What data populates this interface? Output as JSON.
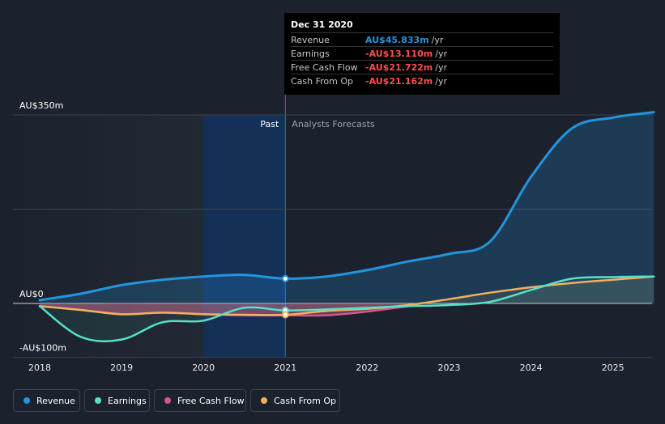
{
  "tooltip": {
    "date": "Dec 31 2020",
    "rows": [
      {
        "label": "Revenue",
        "value": "AU$45.833m",
        "unit": "/yr",
        "color": "#2394df"
      },
      {
        "label": "Earnings",
        "value": "-AU$13.110m",
        "unit": "/yr",
        "color": "#ff4d4d"
      },
      {
        "label": "Free Cash Flow",
        "value": "-AU$21.722m",
        "unit": "/yr",
        "color": "#ff4d4d"
      },
      {
        "label": "Cash From Op",
        "value": "-AU$21.162m",
        "unit": "/yr",
        "color": "#ff4d4d"
      }
    ]
  },
  "chart_data": {
    "type": "line",
    "x_unit": "year",
    "y_unit": "AU$m",
    "ylim": [
      -100,
      350
    ],
    "y_axis_labels": [
      {
        "value": 350,
        "text": "AU$350m"
      },
      {
        "value": 0,
        "text": "AU$0"
      },
      {
        "value": -100,
        "text": "-AU$100m"
      }
    ],
    "x_ticks": [
      {
        "value": 2018,
        "label": "2018"
      },
      {
        "value": 2019,
        "label": "2019"
      },
      {
        "value": 2020,
        "label": "2020"
      },
      {
        "value": 2021,
        "label": "2021"
      },
      {
        "value": 2022,
        "label": "2022"
      },
      {
        "value": 2023,
        "label": "2023"
      },
      {
        "value": 2024,
        "label": "2024"
      },
      {
        "value": 2025,
        "label": "2025"
      }
    ],
    "xlim": [
      2017.7,
      2025.5
    ],
    "divider_x": 2021.0,
    "past_label": "Past",
    "forecast_label": "Analysts Forecasts",
    "series": [
      {
        "name": "Revenue",
        "color": "#2394df",
        "points": [
          [
            2018.0,
            6
          ],
          [
            2018.5,
            18
          ],
          [
            2019.0,
            34
          ],
          [
            2019.5,
            44
          ],
          [
            2020.0,
            50
          ],
          [
            2020.5,
            53
          ],
          [
            2021.0,
            46
          ],
          [
            2021.5,
            50
          ],
          [
            2022.0,
            62
          ],
          [
            2022.5,
            78
          ],
          [
            2023.0,
            92
          ],
          [
            2023.5,
            115
          ],
          [
            2024.0,
            235
          ],
          [
            2024.5,
            325
          ],
          [
            2025.0,
            345
          ],
          [
            2025.5,
            355
          ]
        ]
      },
      {
        "name": "Earnings",
        "color": "#57e0c8",
        "points": [
          [
            2018.0,
            -5
          ],
          [
            2018.5,
            -62
          ],
          [
            2019.0,
            -67
          ],
          [
            2019.5,
            -35
          ],
          [
            2020.0,
            -32
          ],
          [
            2020.5,
            -8
          ],
          [
            2021.0,
            -13
          ],
          [
            2021.5,
            -11
          ],
          [
            2022.0,
            -8
          ],
          [
            2022.5,
            -5
          ],
          [
            2023.0,
            -3
          ],
          [
            2023.5,
            3
          ],
          [
            2024.0,
            25
          ],
          [
            2024.5,
            46
          ],
          [
            2025.0,
            49
          ],
          [
            2025.5,
            50
          ]
        ]
      },
      {
        "name": "Free Cash Flow",
        "color": "#d0578f",
        "points": [
          [
            2018.0,
            -5
          ],
          [
            2018.5,
            -12
          ],
          [
            2019.0,
            -20
          ],
          [
            2019.5,
            -17
          ],
          [
            2020.0,
            -20
          ],
          [
            2020.5,
            -22
          ],
          [
            2021.0,
            -22
          ],
          [
            2021.5,
            -22
          ],
          [
            2022.0,
            -15
          ],
          [
            2022.5,
            -5
          ]
        ]
      },
      {
        "name": "Cash From Op",
        "color": "#f0b05e",
        "points": [
          [
            2018.0,
            -5
          ],
          [
            2018.5,
            -12
          ],
          [
            2019.0,
            -20
          ],
          [
            2019.5,
            -17
          ],
          [
            2020.0,
            -20
          ],
          [
            2020.5,
            -21
          ],
          [
            2021.0,
            -21
          ],
          [
            2021.5,
            -14
          ],
          [
            2022.0,
            -10
          ],
          [
            2022.5,
            -3
          ],
          [
            2023.0,
            8
          ],
          [
            2023.5,
            20
          ],
          [
            2024.0,
            30
          ],
          [
            2024.5,
            38
          ],
          [
            2025.0,
            44
          ],
          [
            2025.5,
            50
          ]
        ]
      }
    ],
    "markers": [
      {
        "series": "Revenue",
        "x": 2021.0,
        "y": 46
      },
      {
        "series": "Earnings",
        "x": 2021.0,
        "y": -13
      },
      {
        "series": "Cash From Op",
        "x": 2021.0,
        "y": -21
      }
    ],
    "legend": [
      "Revenue",
      "Earnings",
      "Free Cash Flow",
      "Cash From Op"
    ]
  }
}
